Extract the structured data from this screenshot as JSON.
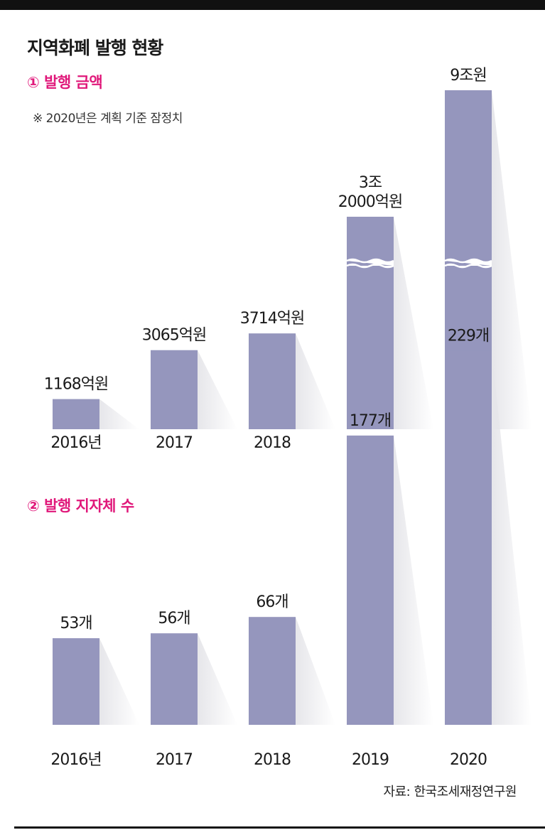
{
  "title": "지역화폐 발행 현황",
  "note": "※ 2020년은 계획 기준 잠정치",
  "source": "자료: 한국조세재정연구원",
  "colors": {
    "bar": "#9596bd",
    "accent": "#e0187a",
    "shadow": "#e6e6ea"
  },
  "chart_data": [
    {
      "type": "bar",
      "title": "① 발행 금액",
      "categories": [
        "2016년",
        "2017",
        "2018",
        "2019",
        "2020"
      ],
      "values": [
        1168,
        3065,
        3714,
        32000,
        90000
      ],
      "unit": "억원",
      "value_labels": [
        "1168억원",
        "3065억원",
        "3714억원",
        "3조\n2000억원",
        "9조원"
      ],
      "axis_breaks": [
        false,
        false,
        false,
        true,
        true
      ]
    },
    {
      "type": "bar",
      "title": "② 발행 지자체 수",
      "categories": [
        "2016년",
        "2017",
        "2018",
        "2019",
        "2020"
      ],
      "values": [
        53,
        56,
        66,
        177,
        229
      ],
      "unit": "개",
      "value_labels": [
        "53개",
        "56개",
        "66개",
        "177개",
        "229개"
      ],
      "axis_breaks": [
        false,
        false,
        false,
        false,
        false
      ]
    }
  ]
}
